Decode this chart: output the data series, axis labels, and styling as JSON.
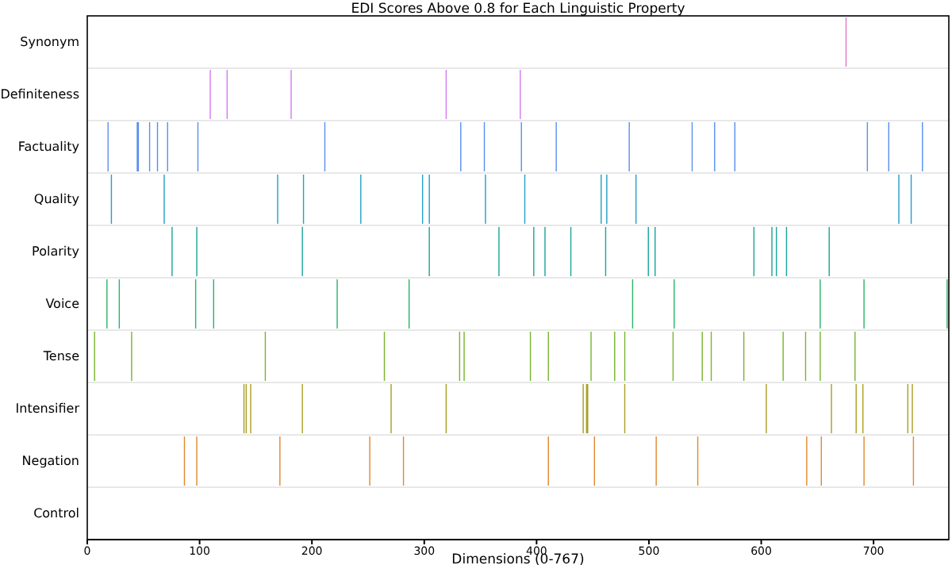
{
  "chart_data": {
    "type": "bar",
    "title": "EDI Scores Above 0.8 for Each Linguistic Property",
    "xlabel": "Dimensions (0-767)",
    "categories": [
      "Synonym",
      "Definiteness",
      "Factuality",
      "Quality",
      "Polarity",
      "Voice",
      "Tense",
      "Intensifier",
      "Negation",
      "Control"
    ],
    "orientation": "horizontal",
    "xlim": [
      0,
      767
    ],
    "xticks": [
      0,
      100,
      200,
      300,
      400,
      500,
      600,
      700
    ],
    "grid": "y",
    "series": [
      {
        "colors": [
          "#e377c2",
          "#d37cf0",
          "#5b8ff0",
          "#25a0c8",
          "#1aa69a",
          "#2db36b",
          "#79b530",
          "#a9a022",
          "#e08a30",
          null
        ],
        "base": [
          675,
          109,
          18,
          21,
          75,
          17,
          6,
          139,
          86,
          null
        ],
        "values": [
          1,
          1,
          1,
          1,
          1,
          1,
          1,
          1,
          1,
          null
        ]
      },
      {
        "colors": [
          null,
          "#d37cf0",
          "#5b8ff0",
          "#25a0c8",
          "#1aa69a",
          "#2db36b",
          "#79b530",
          "#a9a022",
          "#e08a30",
          null
        ],
        "base": [
          null,
          124,
          44,
          68,
          97,
          28,
          39,
          141,
          97,
          null
        ],
        "values": [
          null,
          1,
          2,
          1,
          1,
          1,
          1,
          1,
          1,
          null
        ]
      },
      {
        "colors": [
          null,
          "#d37cf0",
          null,
          "#25a0c8",
          "#1aa69a",
          "#2db36b",
          "#79b530",
          "#a9a022",
          "#e08a30",
          null
        ],
        "base": [
          null,
          181,
          null,
          169,
          191,
          96,
          158,
          145,
          171,
          null
        ],
        "values": [
          null,
          1,
          null,
          1,
          1,
          1,
          1,
          1,
          1,
          null
        ]
      },
      {
        "colors": [
          null,
          "#d37cf0",
          "#5b8ff0",
          "#25a0c8",
          "#1aa69a",
          "#2db36b",
          "#79b530",
          "#a9a022",
          "#e08a30",
          null
        ],
        "base": [
          null,
          319,
          55,
          192,
          304,
          112,
          264,
          191,
          251,
          null
        ],
        "values": [
          null,
          1,
          1,
          1,
          1,
          1,
          1,
          1,
          1,
          null
        ]
      },
      {
        "colors": [
          null,
          "#d37cf0",
          "#5b8ff0",
          "#25a0c8",
          "#1aa69a",
          "#2db36b",
          "#79b530",
          "#a9a022",
          "#e08a30",
          null
        ],
        "base": [
          null,
          385,
          62,
          243,
          366,
          222,
          331,
          270,
          281,
          null
        ],
        "values": [
          null,
          1,
          1,
          1,
          1,
          1,
          1,
          1,
          1,
          null
        ]
      },
      {
        "colors": [
          null,
          null,
          "#5b8ff0",
          "#25a0c8",
          "#1aa69a",
          "#2db36b",
          "#79b530",
          "#a9a022",
          "#e08a30",
          null
        ],
        "base": [
          null,
          null,
          71,
          298,
          397,
          286,
          335,
          319,
          410,
          null
        ],
        "values": [
          null,
          null,
          1,
          1,
          1,
          1,
          1,
          1,
          1,
          null
        ]
      },
      {
        "colors": [
          null,
          null,
          "#5b8ff0",
          "#25a0c8",
          "#1aa69a",
          "#2db36b",
          "#79b530",
          "#a9a022",
          "#e08a30",
          null
        ],
        "base": [
          null,
          null,
          98,
          304,
          407,
          485,
          394,
          441,
          451,
          null
        ],
        "values": [
          null,
          null,
          1,
          1,
          1,
          1,
          1,
          1,
          1,
          null
        ]
      },
      {
        "colors": [
          null,
          null,
          "#5b8ff0",
          "#25a0c8",
          "#1aa69a",
          "#2db36b",
          "#79b530",
          "#a9a022",
          "#e08a30",
          null
        ],
        "base": [
          null,
          null,
          211,
          354,
          430,
          522,
          410,
          444,
          506,
          null
        ],
        "values": [
          null,
          null,
          1,
          1,
          1,
          1,
          1,
          2,
          1,
          null
        ]
      },
      {
        "colors": [
          null,
          null,
          "#5b8ff0",
          "#25a0c8",
          "#1aa69a",
          "#2db36b",
          "#79b530",
          null,
          "#e08a30",
          null
        ],
        "base": [
          null,
          null,
          332,
          389,
          461,
          652,
          448,
          null,
          543,
          null
        ],
        "values": [
          null,
          null,
          1,
          1,
          1,
          1,
          1,
          null,
          1,
          null
        ]
      },
      {
        "colors": [
          null,
          null,
          "#5b8ff0",
          "#25a0c8",
          "#1aa69a",
          "#2db36b",
          "#79b530",
          "#a9a022",
          "#e08a30",
          null
        ],
        "base": [
          null,
          null,
          353,
          457,
          499,
          691,
          469,
          478,
          640,
          null
        ],
        "values": [
          null,
          null,
          1,
          1,
          1,
          1,
          1,
          1,
          1,
          null
        ]
      },
      {
        "colors": [
          null,
          null,
          "#5b8ff0",
          "#25a0c8",
          "#1aa69a",
          "#2db36b",
          "#79b530",
          "#a9a022",
          "#e08a30",
          null
        ],
        "base": [
          null,
          null,
          386,
          462,
          505,
          765,
          478,
          604,
          653,
          null
        ],
        "values": [
          null,
          null,
          1,
          1,
          1,
          1,
          1,
          1,
          1,
          null
        ]
      },
      {
        "colors": [
          null,
          null,
          "#5b8ff0",
          "#25a0c8",
          "#1aa69a",
          null,
          "#79b530",
          "#a9a022",
          "#e08a30",
          null
        ],
        "base": [
          null,
          null,
          417,
          488,
          593,
          null,
          521,
          662,
          691,
          null
        ],
        "values": [
          null,
          null,
          1,
          1,
          1,
          null,
          1,
          1,
          1,
          null
        ]
      },
      {
        "colors": [
          null,
          null,
          "#5b8ff0",
          "#25a0c8",
          "#1aa69a",
          null,
          "#79b530",
          "#a9a022",
          "#e08a30",
          null
        ],
        "base": [
          null,
          null,
          482,
          722,
          609,
          null,
          547,
          684,
          735,
          null
        ],
        "values": [
          null,
          null,
          1,
          1,
          1,
          null,
          1,
          1,
          1,
          null
        ]
      },
      {
        "colors": [
          null,
          null,
          "#5b8ff0",
          "#25a0c8",
          "#1aa69a",
          null,
          "#79b530",
          "#a9a022",
          null,
          null
        ],
        "base": [
          null,
          null,
          538,
          733,
          613,
          null,
          555,
          690,
          null,
          null
        ],
        "values": [
          null,
          null,
          1,
          1,
          1,
          null,
          1,
          1,
          null,
          null
        ]
      },
      {
        "colors": [
          null,
          null,
          "#5b8ff0",
          null,
          "#1aa69a",
          null,
          "#79b530",
          "#a9a022",
          null,
          null
        ],
        "base": [
          null,
          null,
          558,
          null,
          622,
          null,
          584,
          730,
          null,
          null
        ],
        "values": [
          null,
          null,
          1,
          null,
          1,
          null,
          1,
          1,
          null,
          null
        ]
      },
      {
        "colors": [
          null,
          null,
          "#5b8ff0",
          null,
          "#1aa69a",
          null,
          "#79b530",
          "#a9a022",
          null,
          null
        ],
        "base": [
          null,
          null,
          576,
          null,
          660,
          null,
          619,
          734,
          null,
          null
        ],
        "values": [
          null,
          null,
          1,
          null,
          1,
          null,
          1,
          1,
          null,
          null
        ]
      },
      {
        "colors": [
          null,
          null,
          "#5b8ff0",
          null,
          null,
          null,
          "#79b530",
          null,
          null,
          null
        ],
        "base": [
          null,
          null,
          694,
          null,
          null,
          null,
          639,
          null,
          null,
          null
        ],
        "values": [
          null,
          null,
          1,
          null,
          null,
          null,
          1,
          null,
          null,
          null
        ]
      },
      {
        "colors": [
          null,
          null,
          "#5b8ff0",
          null,
          null,
          null,
          "#79b530",
          null,
          null,
          null
        ],
        "base": [
          null,
          null,
          713,
          null,
          null,
          null,
          652,
          null,
          null,
          null
        ],
        "values": [
          null,
          null,
          1,
          null,
          null,
          null,
          1,
          null,
          null,
          null
        ]
      },
      {
        "colors": [
          null,
          null,
          "#5b8ff0",
          null,
          null,
          null,
          "#79b530",
          null,
          null,
          null
        ],
        "base": [
          null,
          null,
          743,
          null,
          null,
          null,
          683,
          null,
          null,
          null
        ],
        "values": [
          null,
          null,
          1,
          null,
          null,
          null,
          1,
          null,
          null,
          null
        ]
      }
    ]
  }
}
